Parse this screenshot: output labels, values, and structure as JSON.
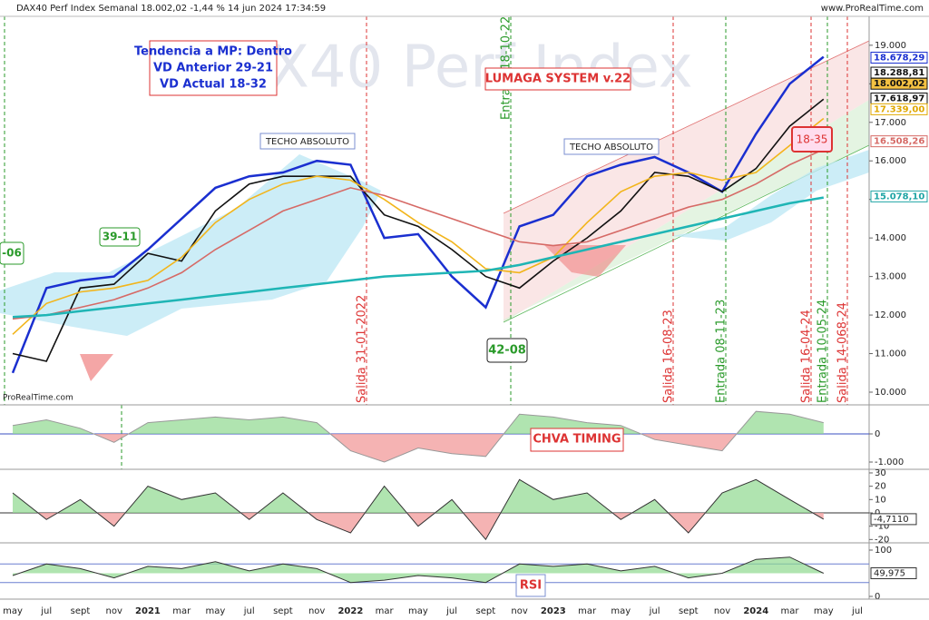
{
  "chart_data": [
    {
      "type": "line",
      "title": "DAX40 Perf Index Semanal 18.002,02 -1,44 % 14 jun 2024 17:34:59",
      "brand": "www.ProRealTime.com",
      "brand_small": "ProRealTime.com",
      "watermark": "DAX40 Perf Index",
      "box_lines": [
        "Tendencia a MP: Dentro",
        "VD Anterior 29-21",
        "VD Actual 18-32"
      ],
      "system": "LUMAGA SYSTEM v.22",
      "annotations": [
        "TECHO ABSOLUTO",
        "TECHO ABSOLUTO",
        "39-11",
        "-06",
        "42-08",
        "18-35"
      ],
      "signals": [
        "Entrada 18-10-22",
        "Salida 31-01-2022",
        "Salida 16-08-23",
        "Entrada 08-11-23",
        "Salida 16-04-24",
        "Entrada 10-05-24",
        "Salida 14-068-24"
      ],
      "categories": [
        "may",
        "jul",
        "sept",
        "nov",
        "2021",
        "mar",
        "may",
        "jul",
        "sept",
        "nov",
        "2022",
        "mar",
        "may",
        "jul",
        "sept",
        "nov",
        "2023",
        "mar",
        "may",
        "jul",
        "sept",
        "nov",
        "2024",
        "mar",
        "may",
        "jul"
      ],
      "series": [
        {
          "color": "#1a2fd0",
          "values": [
            10500,
            12700,
            12900,
            13000,
            13700,
            14500,
            15300,
            15600,
            15700,
            16000,
            15900,
            14000,
            14100,
            13000,
            12200,
            14300,
            14600,
            15600,
            15900,
            16100,
            15700,
            15200,
            16700,
            18000,
            18700,
            null
          ]
        },
        {
          "color": "#111111",
          "values": [
            11000,
            10800,
            12700,
            12800,
            13600,
            13400,
            14700,
            15400,
            15600,
            15600,
            15600,
            14600,
            14300,
            13700,
            13000,
            12700,
            13400,
            14000,
            14700,
            15700,
            15600,
            15200,
            15800,
            16900,
            17600,
            null
          ]
        },
        {
          "color": "#f2b51b",
          "values": [
            11500,
            12300,
            12600,
            12700,
            12900,
            13500,
            14400,
            15000,
            15400,
            15600,
            15500,
            15000,
            14400,
            13900,
            13200,
            13100,
            13500,
            14400,
            15200,
            15600,
            15700,
            15500,
            15700,
            16400,
            17100,
            null
          ]
        },
        {
          "color": "#d66a66",
          "values": [
            11900,
            12000,
            12200,
            12400,
            12700,
            13100,
            13700,
            14200,
            14700,
            15000,
            15300,
            15100,
            14800,
            14500,
            14200,
            13900,
            13800,
            13900,
            14200,
            14500,
            14800,
            15000,
            15400,
            15900,
            16300,
            null
          ]
        },
        {
          "color": "#1fb5b5",
          "values": [
            11950,
            12000,
            12100,
            12200,
            12300,
            12400,
            12500,
            12600,
            12700,
            12800,
            12900,
            13000,
            13050,
            13100,
            13150,
            13300,
            13500,
            13700,
            13900,
            14100,
            14300,
            14500,
            14700,
            14900,
            15050,
            null
          ]
        }
      ],
      "price_tags": [
        {
          "label": "18.678,29",
          "value": 18678.29,
          "color": "#1a2fd0",
          "bg": "#ffffff"
        },
        {
          "label": "18.288,81",
          "value": 18288.81,
          "color": "#111111",
          "bg": "#ffffff"
        },
        {
          "label": "18.002,02",
          "value": 18002.02,
          "color": "#111111",
          "bg": "#f5c242"
        },
        {
          "label": "17.618,97",
          "value": 17618.97,
          "color": "#111111",
          "bg": "#ffffff"
        },
        {
          "label": "17.339,00",
          "value": 17339.0,
          "color": "#e0a800",
          "bg": "#ffffff"
        },
        {
          "label": "16.508,26",
          "value": 16508.26,
          "color": "#d66a66",
          "bg": "#ffffff"
        },
        {
          "label": "15.078,10",
          "value": 15078.1,
          "color": "#1fa5a5",
          "bg": "#ffffff"
        }
      ],
      "ylim": [
        9670,
        19750
      ],
      "yticks": [
        {
          "value": 19000,
          "label": "19.000"
        },
        {
          "value": 18000,
          "label": "18.000"
        },
        {
          "value": 17000,
          "label": "17.000"
        },
        {
          "value": 16000,
          "label": "16.000"
        },
        {
          "value": 15000,
          "label": "15.000"
        },
        {
          "value": 14000,
          "label": "14.000"
        },
        {
          "value": 13000,
          "label": "13.000"
        },
        {
          "value": 12000,
          "label": "12.000"
        },
        {
          "value": 11000,
          "label": "11.000"
        },
        {
          "value": 10000,
          "label": "10.000"
        }
      ]
    },
    {
      "type": "area",
      "title": "CHVA TIMING",
      "values": [
        300,
        500,
        200,
        -300,
        400,
        500,
        600,
        500,
        600,
        400,
        -600,
        -1000,
        -500,
        -700,
        -800,
        700,
        600,
        400,
        300,
        -200,
        -400,
        -600,
        800,
        700,
        400,
        null
      ],
      "ylim": [
        -1258,
        1032
      ],
      "yticks": [
        0,
        {
          "value": -1000,
          "label": "-1.000"
        }
      ]
    },
    {
      "type": "area",
      "values": [
        15,
        -5,
        10,
        -10,
        20,
        10,
        15,
        -5,
        15,
        -5,
        -15,
        20,
        -10,
        10,
        -20,
        25,
        10,
        15,
        -5,
        10,
        -15,
        15,
        25,
        10,
        -4.711,
        null
      ],
      "last_label": "-4,7110",
      "ylim": [
        -22.5,
        32.7
      ],
      "yticks": [
        30,
        20,
        10,
        0,
        -10,
        -20
      ]
    },
    {
      "type": "rsi",
      "title": "RSI",
      "values": [
        45,
        70,
        60,
        40,
        65,
        60,
        75,
        55,
        70,
        60,
        30,
        35,
        45,
        40,
        30,
        70,
        65,
        70,
        55,
        65,
        40,
        50,
        80,
        85,
        49.975,
        null
      ],
      "last_label": "49,975",
      "ylim": [
        -5.9,
        115.7
      ],
      "yticks": [
        100,
        0
      ]
    }
  ]
}
